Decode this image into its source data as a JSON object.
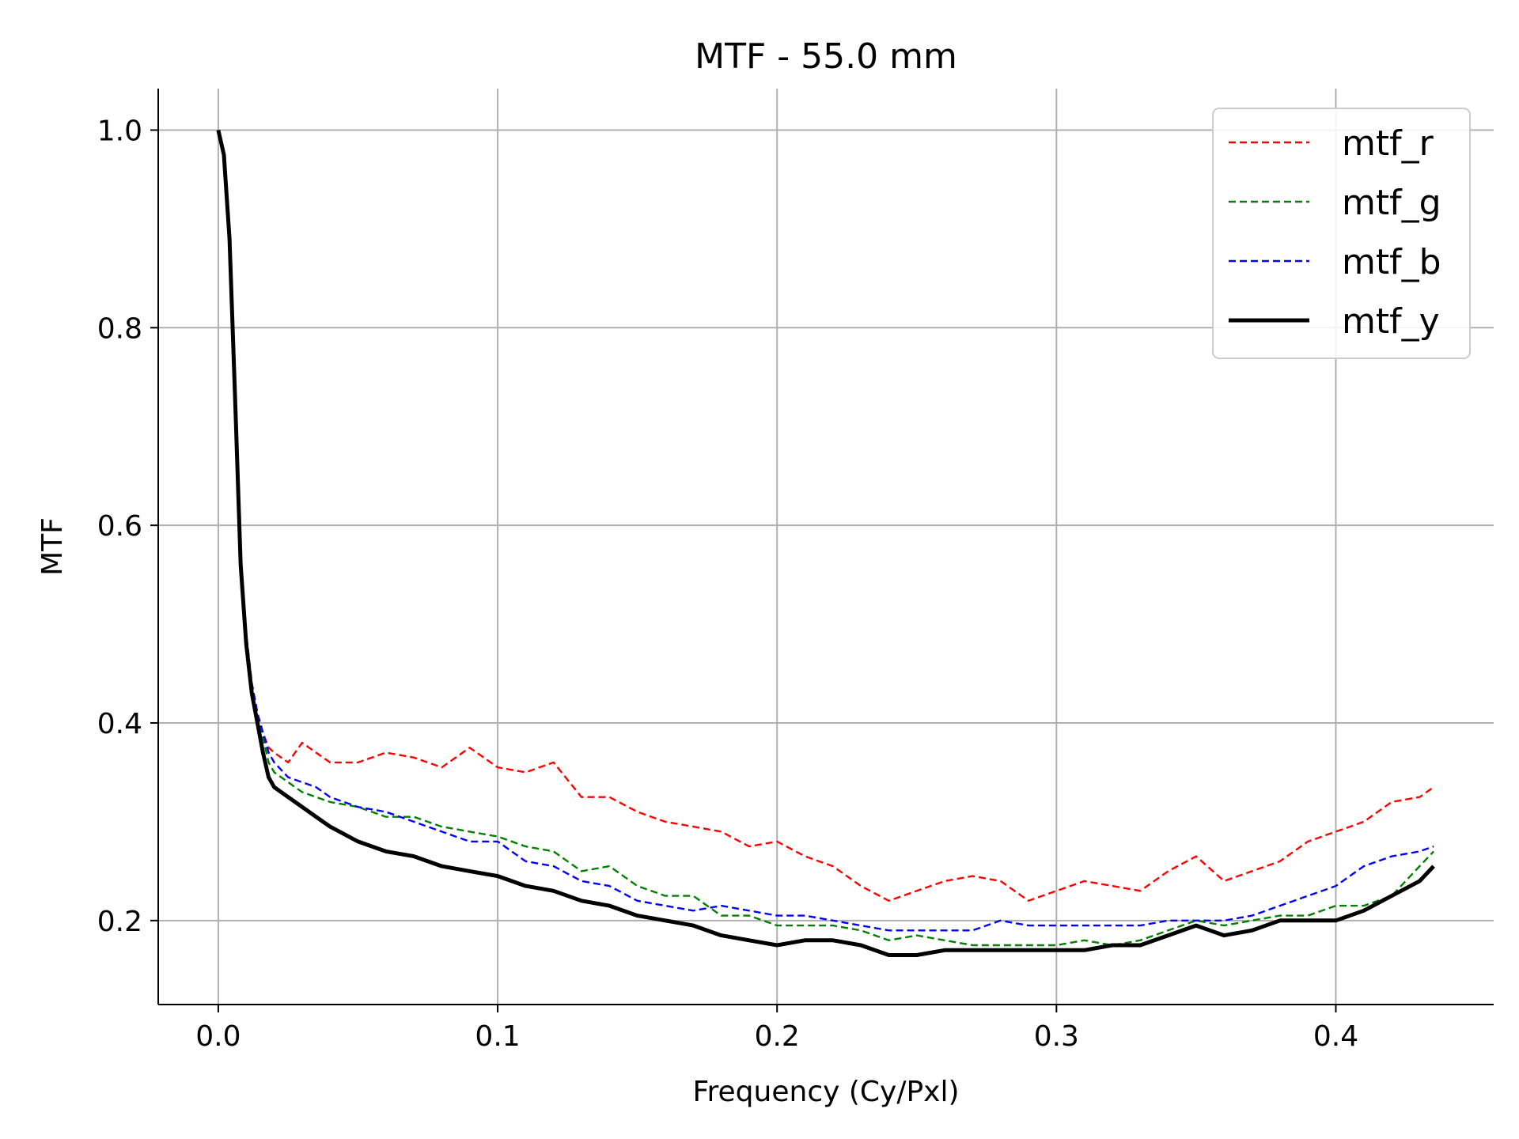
{
  "chart_data": {
    "type": "line",
    "title": "MTF - 55.0 mm",
    "xlabel": "Frequency (Cy/Pxl)",
    "ylabel": "MTF",
    "xlim": [
      -0.0215,
      0.4565
    ],
    "ylim": [
      0.115,
      1.042
    ],
    "xticks": [
      0.0,
      0.1,
      0.2,
      0.3,
      0.4
    ],
    "xtick_labels": [
      "0.0",
      "0.1",
      "0.2",
      "0.3",
      "0.4"
    ],
    "yticks": [
      0.2,
      0.4,
      0.6,
      0.8,
      1.0
    ],
    "ytick_labels": [
      "0.2",
      "0.4",
      "0.6",
      "0.8",
      "1.0"
    ],
    "grid": true,
    "legend_position": "top-right",
    "x": [
      0.0,
      0.002,
      0.004,
      0.006,
      0.008,
      0.01,
      0.012,
      0.014,
      0.016,
      0.018,
      0.02,
      0.025,
      0.03,
      0.035,
      0.04,
      0.05,
      0.06,
      0.07,
      0.08,
      0.09,
      0.1,
      0.11,
      0.12,
      0.13,
      0.14,
      0.15,
      0.16,
      0.17,
      0.18,
      0.19,
      0.2,
      0.21,
      0.22,
      0.23,
      0.24,
      0.25,
      0.26,
      0.27,
      0.28,
      0.29,
      0.3,
      0.31,
      0.32,
      0.33,
      0.34,
      0.35,
      0.36,
      0.37,
      0.38,
      0.39,
      0.4,
      0.41,
      0.42,
      0.43,
      0.435
    ],
    "series": [
      {
        "name": "mtf_r",
        "color": "#ff0000",
        "style": "dashed",
        "values": [
          1.0,
          0.975,
          0.89,
          0.73,
          0.56,
          0.49,
          0.44,
          0.41,
          0.39,
          0.375,
          0.37,
          0.36,
          0.38,
          0.37,
          0.36,
          0.36,
          0.37,
          0.365,
          0.355,
          0.375,
          0.355,
          0.35,
          0.36,
          0.325,
          0.325,
          0.31,
          0.3,
          0.295,
          0.29,
          0.275,
          0.28,
          0.265,
          0.255,
          0.235,
          0.22,
          0.23,
          0.24,
          0.245,
          0.24,
          0.22,
          0.23,
          0.24,
          0.235,
          0.23,
          0.25,
          0.265,
          0.24,
          0.25,
          0.26,
          0.28,
          0.29,
          0.3,
          0.32,
          0.325,
          0.335
        ]
      },
      {
        "name": "mtf_g",
        "color": "#008000",
        "style": "dashed",
        "values": [
          1.0,
          0.975,
          0.89,
          0.73,
          0.56,
          0.49,
          0.44,
          0.41,
          0.385,
          0.36,
          0.35,
          0.34,
          0.33,
          0.325,
          0.32,
          0.315,
          0.305,
          0.305,
          0.295,
          0.29,
          0.285,
          0.275,
          0.27,
          0.25,
          0.255,
          0.235,
          0.225,
          0.225,
          0.205,
          0.205,
          0.195,
          0.195,
          0.195,
          0.19,
          0.18,
          0.185,
          0.18,
          0.175,
          0.175,
          0.175,
          0.175,
          0.18,
          0.175,
          0.18,
          0.19,
          0.2,
          0.195,
          0.2,
          0.205,
          0.205,
          0.215,
          0.215,
          0.225,
          0.255,
          0.27
        ]
      },
      {
        "name": "mtf_b",
        "color": "#0000ff",
        "style": "dashed",
        "values": [
          1.0,
          0.975,
          0.89,
          0.73,
          0.56,
          0.49,
          0.44,
          0.41,
          0.39,
          0.37,
          0.36,
          0.345,
          0.34,
          0.335,
          0.325,
          0.315,
          0.31,
          0.3,
          0.29,
          0.28,
          0.28,
          0.26,
          0.255,
          0.24,
          0.235,
          0.22,
          0.215,
          0.21,
          0.215,
          0.21,
          0.205,
          0.205,
          0.2,
          0.195,
          0.19,
          0.19,
          0.19,
          0.19,
          0.2,
          0.195,
          0.195,
          0.195,
          0.195,
          0.195,
          0.2,
          0.2,
          0.2,
          0.205,
          0.215,
          0.225,
          0.235,
          0.255,
          0.265,
          0.27,
          0.275
        ]
      },
      {
        "name": "mtf_y",
        "color": "#000000",
        "style": "solid",
        "values": [
          1.0,
          0.975,
          0.89,
          0.73,
          0.56,
          0.48,
          0.43,
          0.4,
          0.37,
          0.345,
          0.335,
          0.325,
          0.315,
          0.305,
          0.295,
          0.28,
          0.27,
          0.265,
          0.255,
          0.25,
          0.245,
          0.235,
          0.23,
          0.22,
          0.215,
          0.205,
          0.2,
          0.195,
          0.185,
          0.18,
          0.175,
          0.18,
          0.18,
          0.175,
          0.165,
          0.165,
          0.17,
          0.17,
          0.17,
          0.17,
          0.17,
          0.17,
          0.175,
          0.175,
          0.185,
          0.195,
          0.185,
          0.19,
          0.2,
          0.2,
          0.2,
          0.21,
          0.225,
          0.24,
          0.255
        ]
      }
    ]
  }
}
